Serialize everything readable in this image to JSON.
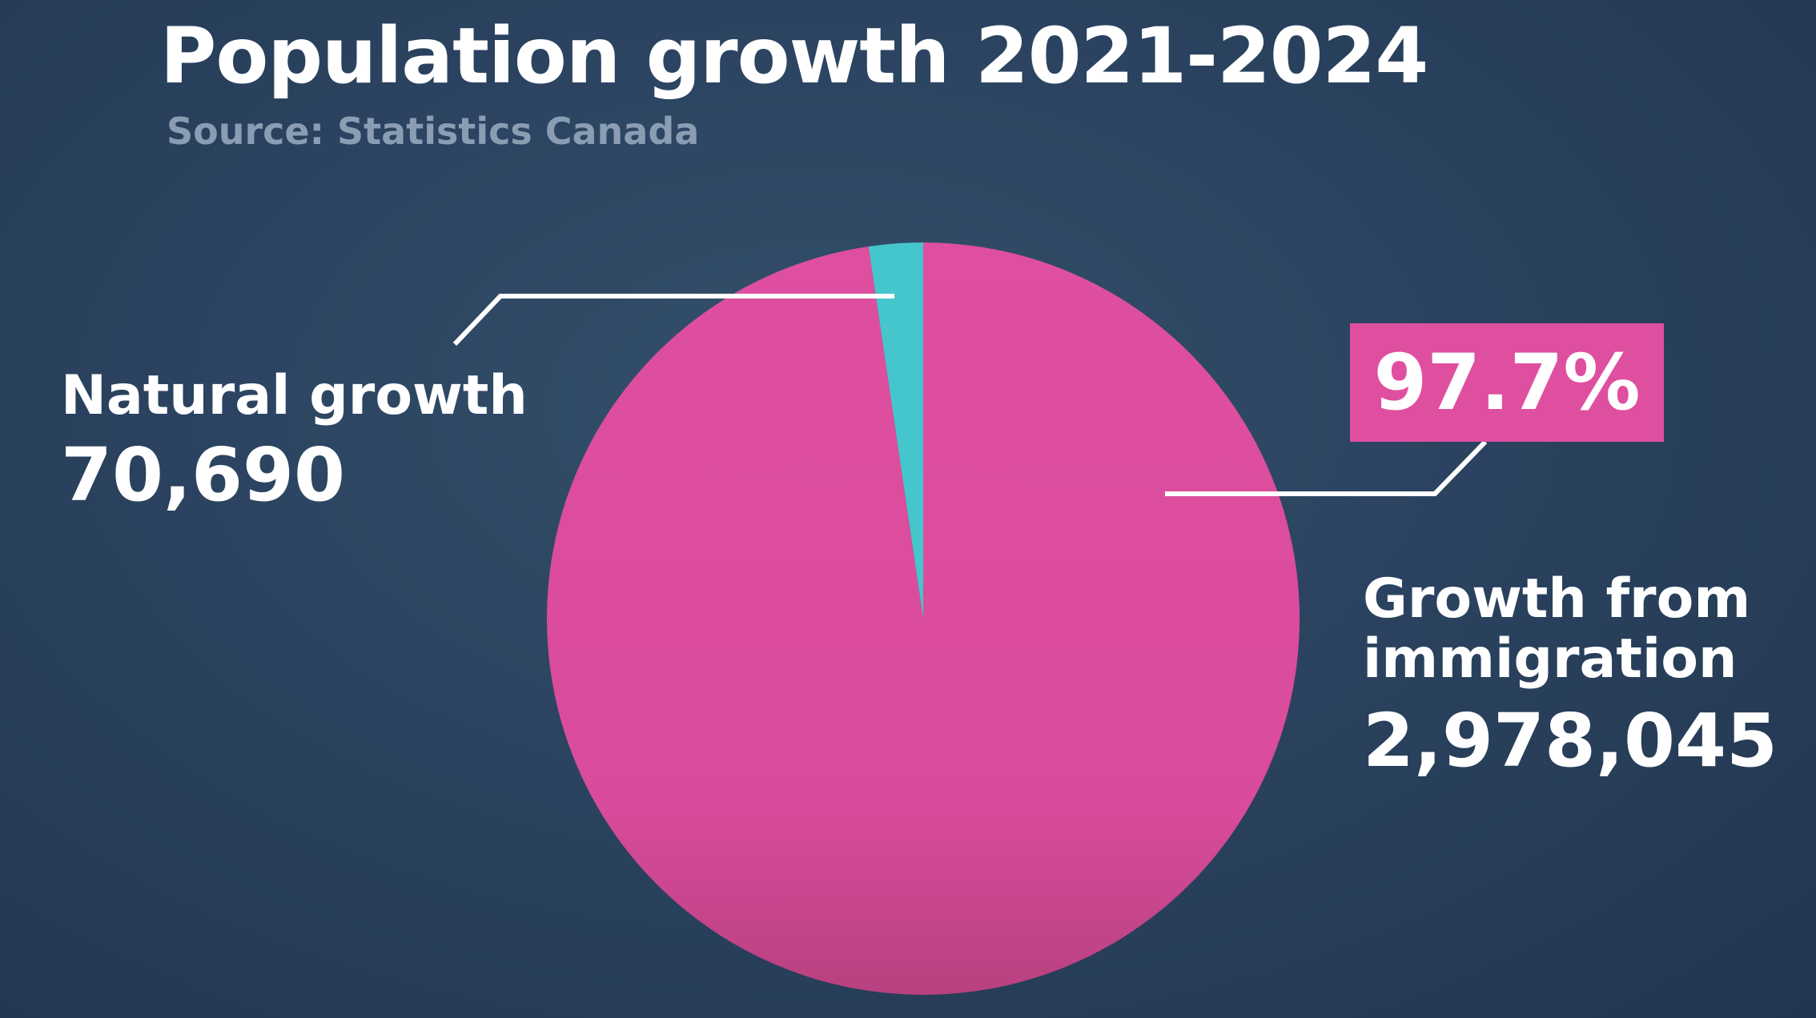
{
  "colors": {
    "background": "#2b4360",
    "immigration": "#df4fa0",
    "natural": "#45c6cc",
    "leader": "#ffffff"
  },
  "chart_data": {
    "type": "pie",
    "title": "Population growth 2021-2024",
    "subtitle": "Source: Statistics Canada",
    "slices": [
      {
        "label": "Growth from immigration",
        "value": 2978045,
        "value_label": "2,978,045",
        "percent_label": "97.7%"
      },
      {
        "label": "Natural growth",
        "value": 70690,
        "value_label": "70,690"
      }
    ],
    "start_angle_deg": 0,
    "direction": "clockwise"
  }
}
